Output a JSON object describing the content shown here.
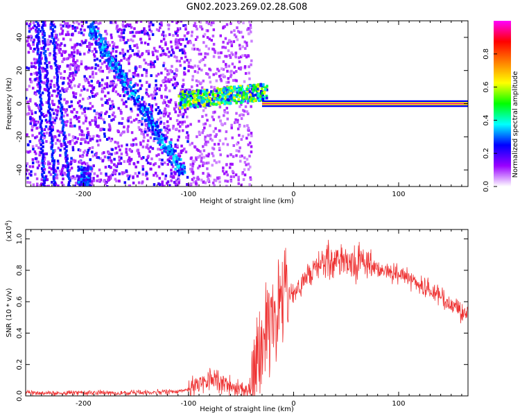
{
  "chart_data": [
    {
      "type": "heatmap",
      "title": "GN02.2023.269.02.28.G08",
      "xlabel": "Height of straight line (km)",
      "ylabel": "Frequency (Hz)",
      "xlim": [
        -255,
        166
      ],
      "ylim": [
        -50,
        50
      ],
      "x_ticks": [
        -200,
        -100,
        0,
        100
      ],
      "y_ticks": [
        -40,
        -20,
        0,
        20,
        40
      ],
      "colorbar": {
        "label": "Normalized spectral amplitude",
        "range": [
          0.0,
          1.0
        ],
        "ticks": [
          "0.0",
          "0.2",
          "0.4",
          "0.6",
          "0.8"
        ],
        "colormap": [
          "#ffffff",
          "#9900ff",
          "#0000ff",
          "#00ffff",
          "#00ff00",
          "#ffff00",
          "#ff8000",
          "#ff0000",
          "#ff00ff"
        ]
      },
      "features": [
        {
          "name": "carrier line",
          "freq_hz": 0,
          "x_from": -30,
          "x_to": 166,
          "amplitude": 0.95
        },
        {
          "name": "descending ray",
          "from": [
            -195,
            48
          ],
          "to": [
            -105,
            -42
          ],
          "amplitude": 0.35
        },
        {
          "name": "multipath cluster",
          "x_from": -110,
          "x_to": -25,
          "freq_hz": 5,
          "amplitude": 0.55
        }
      ]
    },
    {
      "type": "line",
      "title": "",
      "xlabel": "Height of straight line (km)",
      "ylabel": "SNR (10 * v/v)",
      "y_multiplier": "(x10",
      "y_multiplier_exp": "4",
      "xlim": [
        -255,
        166
      ],
      "ylim": [
        0,
        1.06
      ],
      "x_ticks": [
        -200,
        -100,
        0,
        100
      ],
      "y_ticks": [
        "0.0",
        "0.2",
        "0.4",
        "0.6",
        "0.8",
        "1.0"
      ],
      "color": "#ee3333",
      "series": [
        {
          "x": [
            -255,
            -200,
            -150,
            -110,
            -95,
            -85,
            -80,
            -75,
            -70,
            -65,
            -60,
            -55,
            -50,
            -45,
            -40,
            -35,
            -30,
            -25,
            -20,
            -15,
            -10,
            -5,
            0,
            10,
            20,
            30,
            40,
            50,
            60,
            65,
            70,
            80,
            90,
            100,
            110,
            120,
            130,
            140,
            150,
            160,
            166
          ],
          "y": [
            0.02,
            0.02,
            0.02,
            0.03,
            0.05,
            0.08,
            0.11,
            0.12,
            0.09,
            0.07,
            0.06,
            0.05,
            0.05,
            0.04,
            0.05,
            0.18,
            0.3,
            0.42,
            0.5,
            0.54,
            0.58,
            0.62,
            0.66,
            0.73,
            0.8,
            0.85,
            0.87,
            0.87,
            0.85,
            0.88,
            0.83,
            0.81,
            0.79,
            0.78,
            0.75,
            0.71,
            0.67,
            0.63,
            0.58,
            0.54,
            0.52
          ]
        }
      ]
    }
  ]
}
